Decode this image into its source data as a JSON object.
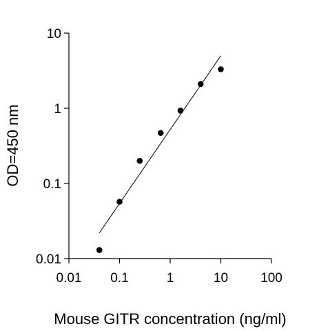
{
  "chart_data": {
    "type": "scatter",
    "title": "",
    "xlabel": "Mouse GITR concentration (ng/ml)",
    "ylabel": "OD=450 nm",
    "xscale": "log",
    "yscale": "log",
    "xlim": [
      0.01,
      100
    ],
    "ylim": [
      0.01,
      10
    ],
    "xticks": [
      0.01,
      0.1,
      1,
      10,
      100
    ],
    "xtick_labels": [
      "0.01",
      "0.1",
      "1",
      "10",
      "100"
    ],
    "yticks": [
      0.01,
      0.1,
      1,
      10
    ],
    "ytick_labels": [
      "0.01",
      "0.1",
      "1",
      "10"
    ],
    "grid": false,
    "legend": "none",
    "point_color": "#000000",
    "series": [
      {
        "x": [
          0.04,
          0.1,
          0.25,
          0.65,
          1.6,
          4,
          10
        ],
        "y": [
          0.013,
          0.057,
          0.2,
          0.47,
          0.93,
          2.1,
          3.3
        ]
      }
    ],
    "fit_line": {
      "type": "linear-log-log",
      "x": [
        0.04,
        10
      ],
      "y": [
        0.022,
        5
      ]
    }
  }
}
